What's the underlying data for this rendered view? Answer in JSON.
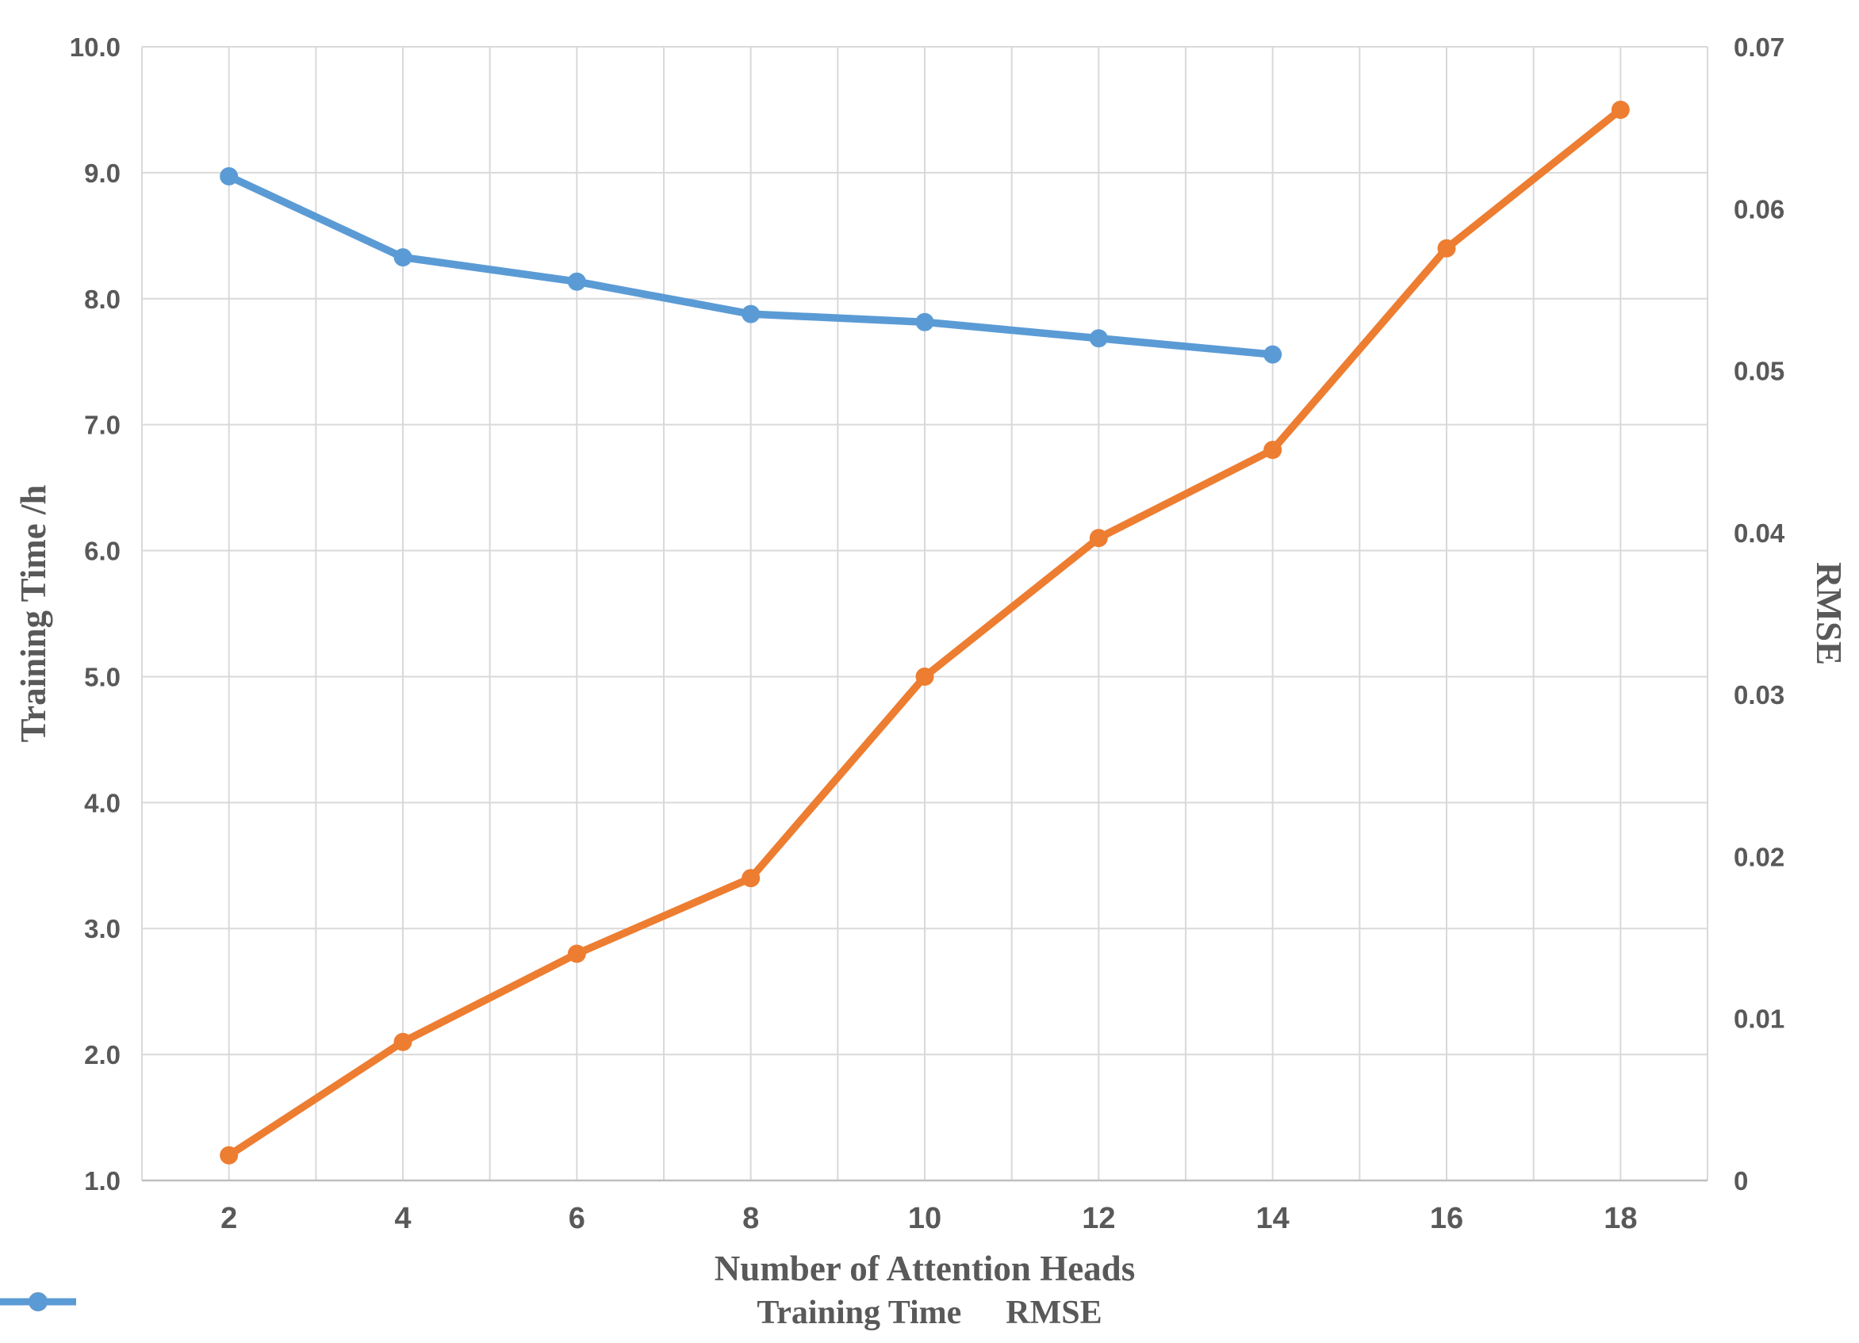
{
  "chart_data": {
    "type": "line",
    "title": "",
    "xlabel": "Number of Attention Heads",
    "ylabel_left": "Training Time /h",
    "ylabel_right": "RMSE",
    "x_axis": {
      "title": "Number of Attention Heads",
      "range": [
        1,
        19
      ],
      "grid_step": 1,
      "ticks": [
        "2",
        "4",
        "6",
        "8",
        "10",
        "12",
        "14",
        "16",
        "18"
      ]
    },
    "left_axis": {
      "title": "Training Time /h",
      "range": [
        1.0,
        10.0
      ],
      "ticks": [
        "1.0",
        "2.0",
        "3.0",
        "4.0",
        "5.0",
        "6.0",
        "7.0",
        "8.0",
        "9.0",
        "10.0"
      ]
    },
    "right_axis": {
      "title": "RMSE",
      "range": [
        0,
        0.07
      ],
      "ticks": [
        "0",
        "0.01",
        "0.02",
        "0.03",
        "0.04",
        "0.05",
        "0.06",
        "0.07"
      ]
    },
    "series": [
      {
        "name": "Training Time",
        "axis": "left",
        "color": "#ED7D31",
        "marker": "circle",
        "x": [
          2,
          4,
          6,
          8,
          10,
          12,
          14,
          16,
          18
        ],
        "values": [
          1.2,
          2.1,
          2.8,
          3.4,
          5.0,
          6.1,
          6.8,
          8.4,
          9.5
        ]
      },
      {
        "name": "RMSE",
        "axis": "right",
        "color": "#5B9BD5",
        "marker": "circle",
        "x": [
          2,
          4,
          6,
          8,
          10,
          12,
          14
        ],
        "values": [
          0.062,
          0.057,
          0.0555,
          0.0535,
          0.053,
          0.052,
          0.051
        ]
      }
    ],
    "legend_position": "bottom",
    "grid": true,
    "colors": {
      "gridline": "#D9D9D9",
      "axis_line": "#BFBFBF",
      "text": "#595959",
      "background": "#FFFFFF"
    }
  }
}
